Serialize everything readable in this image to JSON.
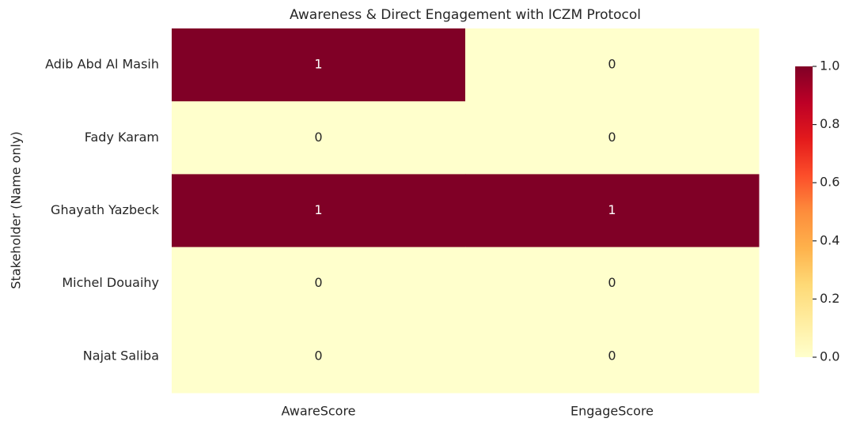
{
  "chart_data": {
    "type": "heatmap",
    "title": "Awareness & Direct Engagement with ICZM Protocol",
    "y_label": "Stakeholder (Name only)",
    "x_categories": [
      "AwareScore",
      "EngageScore"
    ],
    "y_categories": [
      "Adib Abd Al Masih",
      "Fady Karam",
      "Ghayath Yazbeck",
      "Michel Douaihy",
      "Najat Saliba"
    ],
    "values": [
      [
        1,
        0
      ],
      [
        0,
        0
      ],
      [
        1,
        1
      ],
      [
        0,
        0
      ],
      [
        0,
        0
      ]
    ],
    "colormap": [
      "#ffffcc",
      "#ffeda0",
      "#fed976",
      "#feb24c",
      "#fd8d3c",
      "#fc4e2a",
      "#e31a1c",
      "#bd0026",
      "#800026"
    ],
    "clim": [
      0,
      1
    ],
    "cticks": [
      {
        "value": 0,
        "label": "0.0"
      },
      {
        "value": 0.2,
        "label": "0.2"
      },
      {
        "value": 0.4,
        "label": "0.4"
      },
      {
        "value": 0.6,
        "label": "0.6"
      },
      {
        "value": 0.8,
        "label": "0.8"
      },
      {
        "value": 1,
        "label": "1.0"
      }
    ]
  }
}
